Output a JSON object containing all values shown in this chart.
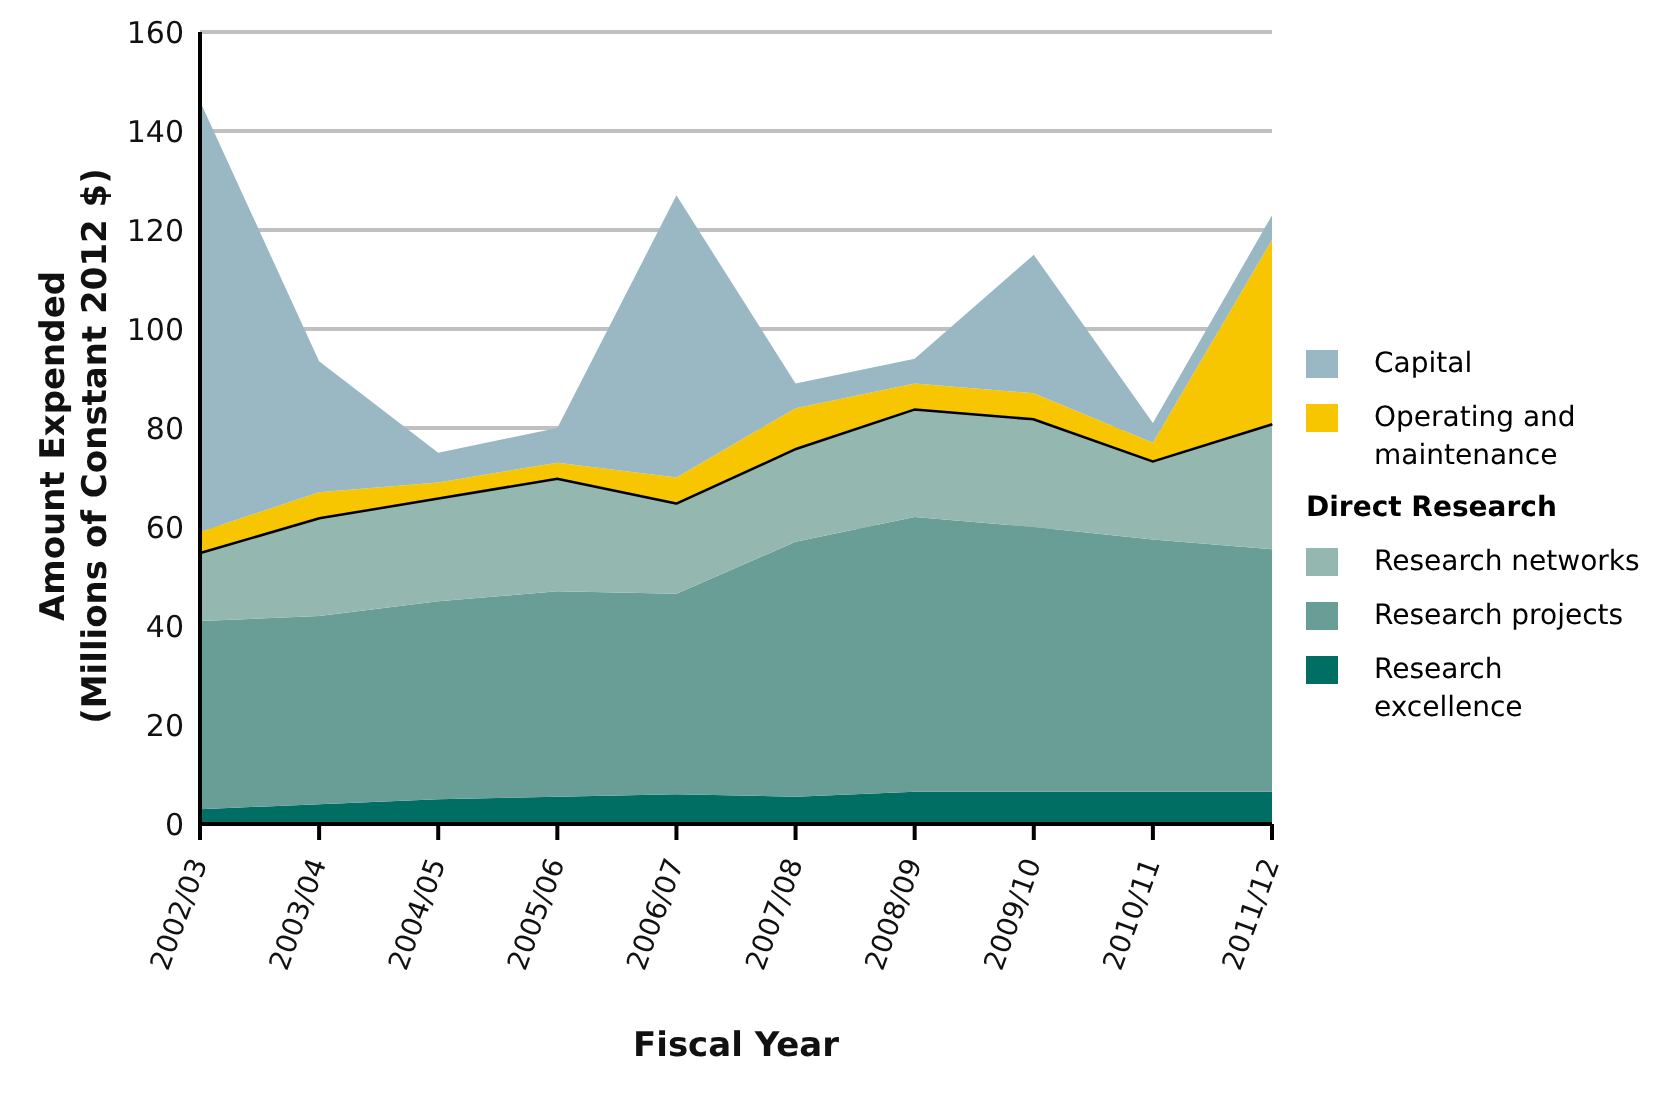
{
  "chart_data": {
    "type": "area",
    "stacked": true,
    "xlabel": "Fiscal Year",
    "ylabel": "Amount Expended\n(Millions of Constant 2012 $)",
    "categories": [
      "2002/03",
      "2003/04",
      "2004/05",
      "2005/06",
      "2006/07",
      "2007/08",
      "2008/09",
      "2009/10",
      "2010/11",
      "2011/12"
    ],
    "series": [
      {
        "name": "Research excellence",
        "color": "#006e62",
        "values": [
          3,
          4,
          5,
          5.5,
          6,
          5.5,
          6.5,
          6.5,
          6.5,
          6.5
        ]
      },
      {
        "name": "Research projects",
        "color": "#689e96",
        "values": [
          38,
          38,
          40,
          41.5,
          40.5,
          51.5,
          55.5,
          53.5,
          51,
          49
        ]
      },
      {
        "name": "Research networks",
        "color": "#94b8b0",
        "values": [
          14,
          20,
          21,
          23,
          18.5,
          19,
          22,
          22,
          16,
          25.5
        ]
      },
      {
        "name": "Operating and maintenance",
        "color": "#f7c600",
        "values": [
          4,
          5,
          3,
          3,
          5,
          8,
          5,
          5,
          3.5,
          37
        ]
      },
      {
        "name": "Capital",
        "color": "#9ab8c4",
        "values": [
          87,
          26.5,
          6,
          7,
          57,
          5,
          5,
          28,
          4,
          5
        ]
      }
    ],
    "ylim": [
      0,
      160
    ],
    "yticks": [
      0,
      20,
      40,
      60,
      80,
      100,
      120,
      140,
      160
    ],
    "grid": "y",
    "legend": "right",
    "annotations": [
      "Direct Research"
    ]
  }
}
